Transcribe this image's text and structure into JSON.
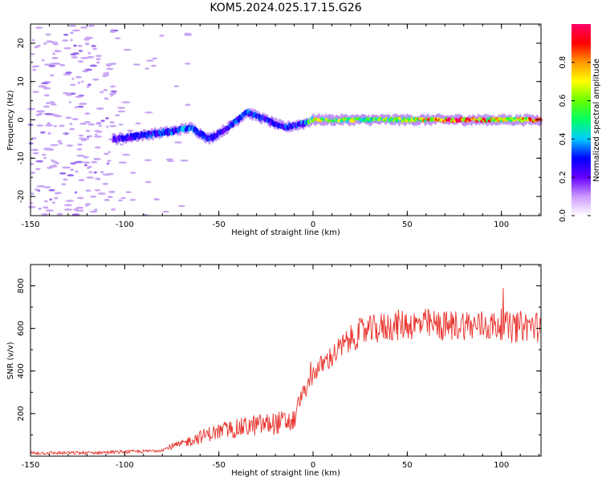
{
  "title": "KOM5.2024.025.17.15.G26",
  "colors": {
    "snr_line": "#e8312a",
    "axis": "#000000",
    "scatter_dot": "#c9a6f5"
  },
  "chart_data": [
    {
      "type": "heatmap",
      "xlabel": "Height of straight line (km)",
      "ylabel": "Frequency (Hz)",
      "xlim": [
        -150,
        121
      ],
      "ylim": [
        -25,
        25
      ],
      "x_ticks": [
        "-150",
        "-100",
        "-50",
        "0",
        "50",
        "100"
      ],
      "y_ticks": [
        "-20",
        "-10",
        "0",
        "10",
        "20"
      ],
      "grid": false,
      "colorbar": {
        "label": "Normalized spectral amplitude",
        "range": [
          0,
          1
        ],
        "ticks": [
          "0.0",
          "0.2",
          "0.4",
          "0.6",
          "0.8"
        ],
        "colormap": [
          "#ffffff",
          "#cc99ff",
          "#6600ff",
          "#0000ff",
          "#00ccff",
          "#00ff66",
          "#66ff00",
          "#ffff00",
          "#ff9900",
          "#ff0000",
          "#ff0066"
        ]
      },
      "ridge": {
        "description_points_x": [
          -105,
          -90,
          -75,
          -65,
          -55,
          -45,
          -35,
          -25,
          -15,
          -5,
          0,
          25,
          50,
          75,
          100,
          121
        ],
        "frequency_hz": [
          -5,
          -4,
          -3,
          -2,
          -5,
          -2,
          2,
          0,
          -2,
          -1,
          0,
          0,
          0,
          0,
          0,
          0
        ],
        "amplitude": [
          0.25,
          0.3,
          0.35,
          0.35,
          0.3,
          0.3,
          0.35,
          0.3,
          0.3,
          0.35,
          0.7,
          0.6,
          0.65,
          0.95,
          0.7,
          0.8
        ]
      }
    },
    {
      "type": "line",
      "xlabel": "Height of straight line (km)",
      "ylabel": "SNR (v/v)",
      "xlim": [
        -150,
        121
      ],
      "ylim": [
        0,
        900
      ],
      "x_ticks": [
        "-150",
        "-100",
        "-50",
        "0",
        "50",
        "100"
      ],
      "y_ticks": [
        "200",
        "400",
        "600",
        "800"
      ],
      "grid": false,
      "series": [
        {
          "x": [
            -150,
            -140,
            -130,
            -120,
            -110,
            -100,
            -90,
            -85,
            -80,
            -75,
            -70,
            -65,
            -60,
            -55,
            -50,
            -45,
            -40,
            -35,
            -30,
            -25,
            -20,
            -15,
            -10,
            -8,
            -5,
            -2,
            0,
            5,
            10,
            15,
            20,
            25,
            30,
            35,
            40,
            45,
            50,
            55,
            60,
            65,
            70,
            75,
            80,
            85,
            90,
            95,
            100,
            105,
            110,
            115,
            121
          ],
          "y": [
            15,
            15,
            15,
            15,
            18,
            20,
            22,
            25,
            30,
            45,
            55,
            75,
            90,
            105,
            115,
            125,
            130,
            140,
            145,
            150,
            155,
            160,
            165,
            250,
            300,
            330,
            390,
            430,
            470,
            510,
            550,
            580,
            590,
            600,
            610,
            615,
            620,
            615,
            620,
            615,
            610,
            615,
            620,
            610,
            615,
            610,
            620,
            600,
            610,
            615,
            605
          ]
        }
      ]
    }
  ]
}
